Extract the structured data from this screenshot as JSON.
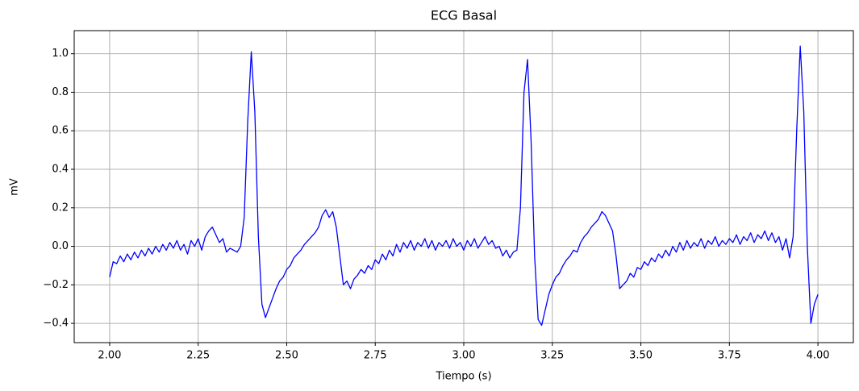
{
  "chart_data": {
    "type": "line",
    "title": "ECG Basal",
    "xlabel": "Tiempo (s)",
    "ylabel": "mV",
    "x": [
      2,
      2.01,
      2.02,
      2.03,
      2.04,
      2.05,
      2.06,
      2.07,
      2.08,
      2.09,
      2.1,
      2.11,
      2.12,
      2.13,
      2.14,
      2.15,
      2.16,
      2.17,
      2.18,
      2.19,
      2.2,
      2.21,
      2.22,
      2.23,
      2.24,
      2.25,
      2.26,
      2.27,
      2.28,
      2.29,
      2.3,
      2.31,
      2.32,
      2.33,
      2.34,
      2.35,
      2.36,
      2.37,
      2.38,
      2.39,
      2.4,
      2.41,
      2.42,
      2.43,
      2.44,
      2.45,
      2.46,
      2.47,
      2.48,
      2.49,
      2.5,
      2.51,
      2.52,
      2.53,
      2.54,
      2.55,
      2.56,
      2.57,
      2.58,
      2.59,
      2.6,
      2.61,
      2.62,
      2.63,
      2.64,
      2.65,
      2.66,
      2.67,
      2.68,
      2.69,
      2.7,
      2.71,
      2.72,
      2.73,
      2.74,
      2.75,
      2.76,
      2.77,
      2.78,
      2.79,
      2.8,
      2.81,
      2.82,
      2.83,
      2.84,
      2.85,
      2.86,
      2.87,
      2.88,
      2.89,
      2.9,
      2.91,
      2.92,
      2.93,
      2.94,
      2.95,
      2.96,
      2.97,
      2.98,
      2.99,
      3,
      3.01,
      3.02,
      3.03,
      3.04,
      3.05,
      3.06,
      3.07,
      3.08,
      3.09,
      3.1,
      3.11,
      3.12,
      3.13,
      3.14,
      3.15,
      3.16,
      3.17,
      3.18,
      3.19,
      3.2,
      3.21,
      3.22,
      3.23,
      3.24,
      3.25,
      3.26,
      3.27,
      3.28,
      3.29,
      3.3,
      3.31,
      3.32,
      3.33,
      3.34,
      3.35,
      3.36,
      3.37,
      3.38,
      3.39,
      3.4,
      3.41,
      3.42,
      3.43,
      3.44,
      3.45,
      3.46,
      3.47,
      3.48,
      3.49,
      3.5,
      3.51,
      3.52,
      3.53,
      3.54,
      3.55,
      3.56,
      3.57,
      3.58,
      3.59,
      3.6,
      3.61,
      3.62,
      3.63,
      3.64,
      3.65,
      3.66,
      3.67,
      3.68,
      3.69,
      3.7,
      3.71,
      3.72,
      3.73,
      3.74,
      3.75,
      3.76,
      3.77,
      3.78,
      3.79,
      3.8,
      3.81,
      3.82,
      3.83,
      3.84,
      3.85,
      3.86,
      3.87,
      3.88,
      3.89,
      3.9,
      3.91,
      3.92,
      3.93,
      3.94,
      3.95,
      3.96,
      3.97,
      3.98,
      3.99,
      4
    ],
    "series": [
      {
        "color": "#0000ff",
        "values": [
          -0.16,
          -0.08,
          -0.09,
          -0.05,
          -0.08,
          -0.04,
          -0.07,
          -0.03,
          -0.06,
          -0.02,
          -0.05,
          -0.01,
          -0.04,
          0,
          -0.03,
          0.01,
          -0.02,
          0.02,
          -0.01,
          0.03,
          -0.02,
          0.01,
          -0.04,
          0.03,
          0,
          0.04,
          -0.02,
          0.05,
          0.08,
          0.1,
          0.06,
          0.02,
          0.04,
          -0.03,
          -0.01,
          -0.02,
          -0.03,
          0,
          0.15,
          0.65,
          1.01,
          0.7,
          0.05,
          -0.3,
          -0.37,
          -0.32,
          -0.27,
          -0.22,
          -0.18,
          -0.16,
          -0.12,
          -0.1,
          -0.06,
          -0.04,
          -0.02,
          0.01,
          0.03,
          0.05,
          0.07,
          0.1,
          0.16,
          0.19,
          0.15,
          0.18,
          0.1,
          -0.05,
          -0.2,
          -0.18,
          -0.22,
          -0.17,
          -0.15,
          -0.12,
          -0.14,
          -0.1,
          -0.12,
          -0.07,
          -0.09,
          -0.04,
          -0.07,
          -0.02,
          -0.05,
          0.01,
          -0.03,
          0.02,
          -0.01,
          0.03,
          -0.02,
          0.02,
          0,
          0.04,
          -0.01,
          0.03,
          -0.02,
          0.02,
          0,
          0.03,
          -0.01,
          0.04,
          0,
          0.02,
          -0.02,
          0.03,
          0,
          0.04,
          -0.01,
          0.02,
          0.05,
          0.01,
          0.03,
          -0.01,
          0,
          -0.05,
          -0.02,
          -0.06,
          -0.03,
          -0.02,
          0.2,
          0.8,
          0.97,
          0.55,
          -0.05,
          -0.38,
          -0.41,
          -0.33,
          -0.25,
          -0.2,
          -0.16,
          -0.14,
          -0.1,
          -0.07,
          -0.05,
          -0.02,
          -0.03,
          0.02,
          0.05,
          0.07,
          0.1,
          0.12,
          0.14,
          0.18,
          0.16,
          0.12,
          0.08,
          -0.05,
          -0.22,
          -0.2,
          -0.18,
          -0.14,
          -0.16,
          -0.11,
          -0.12,
          -0.08,
          -0.1,
          -0.06,
          -0.08,
          -0.04,
          -0.06,
          -0.02,
          -0.05,
          0,
          -0.03,
          0.02,
          -0.02,
          0.03,
          -0.01,
          0.02,
          0,
          0.04,
          -0.01,
          0.03,
          0.01,
          0.05,
          0,
          0.03,
          0.01,
          0.04,
          0.02,
          0.06,
          0.01,
          0.05,
          0.03,
          0.07,
          0.02,
          0.06,
          0.04,
          0.08,
          0.03,
          0.07,
          0.02,
          0.05,
          -0.02,
          0.04,
          -0.06,
          0.05,
          0.6,
          1.04,
          0.7,
          0,
          -0.4,
          -0.3,
          -0.25
        ]
      }
    ],
    "xlim": [
      1.9,
      4.1
    ],
    "ylim": [
      -0.5,
      1.12
    ],
    "xticks": [
      {
        "value": 2,
        "label": "2.00"
      },
      2.25,
      {
        "value": 2.5,
        "label": "2.50"
      },
      2.75,
      {
        "value": 3,
        "label": "3.00"
      },
      3.25,
      {
        "value": 3.5,
        "label": "3.50"
      },
      3.75,
      {
        "value": 4,
        "label": "4.00"
      }
    ],
    "yticks": [
      {
        "value": -0.4,
        "label": "−0.4"
      },
      {
        "value": -0.2,
        "label": "−0.2"
      },
      {
        "value": 0,
        "label": "0.0"
      },
      0.2,
      0.4,
      0.6,
      0.8,
      {
        "value": 1,
        "label": "1.0"
      }
    ],
    "grid": true
  }
}
